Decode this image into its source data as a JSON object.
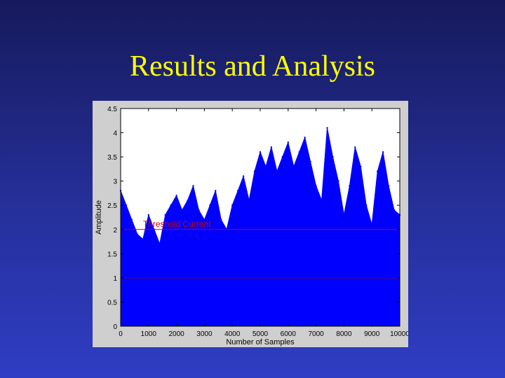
{
  "slide": {
    "title": "Results and Analysis",
    "background_color": "#25309a",
    "title_color": "#ffff00"
  },
  "chart_data": {
    "type": "area",
    "title": "",
    "xlabel": "Number of Samples",
    "ylabel": "Amplitude",
    "xlim": [
      0,
      10000
    ],
    "ylim": [
      0,
      4.5
    ],
    "x_ticks": [
      0,
      1000,
      2000,
      3000,
      4000,
      5000,
      6000,
      7000,
      8000,
      9000,
      10000
    ],
    "x_tick_labels": [
      "0",
      "1000",
      "2000",
      "3000",
      "4000",
      "5000",
      "6000",
      "7000",
      "8000",
      "9000",
      "10000"
    ],
    "y_ticks": [
      0,
      0.5,
      1,
      1.5,
      2,
      2.5,
      3,
      3.5,
      4,
      4.5
    ],
    "y_tick_labels": [
      "0",
      "0.5",
      "1",
      "1.5",
      "2",
      "2.5",
      "3",
      "3.5",
      "4",
      "4.5"
    ],
    "grid": false,
    "series": [
      {
        "color": "#0000ff",
        "x": [
          0,
          200,
          400,
          600,
          800,
          1000,
          1200,
          1400,
          1600,
          1800,
          2000,
          2200,
          2400,
          2600,
          2800,
          3000,
          3200,
          3400,
          3600,
          3800,
          4000,
          4200,
          4400,
          4600,
          4800,
          5000,
          5200,
          5400,
          5600,
          5800,
          6000,
          6200,
          6400,
          6600,
          6800,
          7000,
          7200,
          7400,
          7600,
          7800,
          8000,
          8200,
          8400,
          8600,
          8800,
          9000,
          9200,
          9400,
          9600,
          9800,
          10000
        ],
        "values": [
          2.8,
          2.5,
          2.2,
          1.9,
          1.8,
          2.3,
          2.0,
          1.7,
          2.3,
          2.5,
          2.7,
          2.4,
          2.6,
          2.9,
          2.4,
          2.2,
          2.5,
          2.8,
          2.2,
          2.0,
          2.5,
          2.8,
          3.1,
          2.6,
          3.2,
          3.6,
          3.3,
          3.7,
          3.2,
          3.5,
          3.8,
          3.3,
          3.6,
          3.9,
          3.4,
          2.9,
          2.6,
          4.1,
          3.5,
          3.0,
          2.3,
          2.9,
          3.7,
          3.3,
          2.5,
          2.1,
          3.2,
          3.6,
          2.9,
          2.4,
          2.3
        ]
      }
    ],
    "reference_lines": [
      {
        "orientation": "horizontal",
        "y": 2.0,
        "color": "#cc0000",
        "label": "Threshold Current"
      },
      {
        "orientation": "horizontal",
        "y": 1.0,
        "color": "#880000",
        "label": ""
      },
      {
        "orientation": "horizontal",
        "y": 0.0,
        "color": "#cc0000",
        "label": ""
      }
    ]
  }
}
